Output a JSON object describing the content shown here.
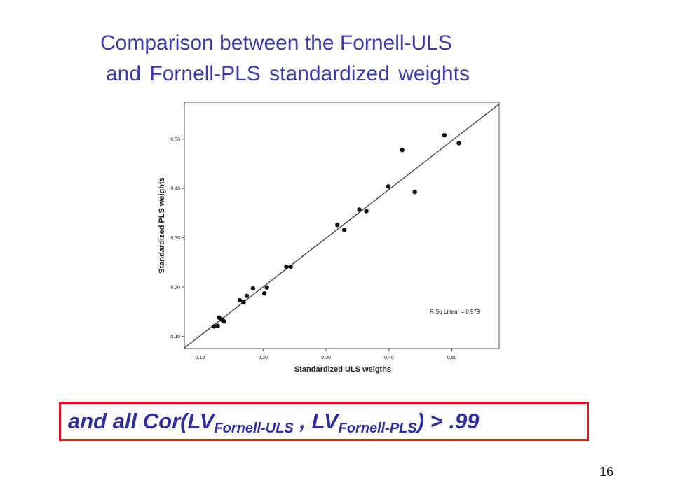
{
  "slide": {
    "title_line1": "Comparison between the Fornell-ULS",
    "title_line2": "and Fornell-PLS standardized weights",
    "callout": {
      "part1": "and  all Cor(LV",
      "sub1": "Fornell-ULS",
      "part2": " , LV",
      "sub2": "Fornell-PLS",
      "part3": ") > .99"
    },
    "page_number": "16"
  },
  "chart_data": {
    "type": "scatter",
    "xlabel": "Standardized ULS weigths",
    "ylabel": "Standardized PLS weights",
    "xlim": [
      0.075,
      0.575
    ],
    "ylim": [
      0.075,
      0.575
    ],
    "x_ticks": [
      0.1,
      0.2,
      0.3,
      0.4,
      0.5
    ],
    "x_tick_labels": [
      "0,10",
      "0,20",
      "0,30",
      "0,40",
      "0,50"
    ],
    "y_ticks": [
      0.1,
      0.2,
      0.3,
      0.4,
      0.5
    ],
    "y_tick_labels": [
      "0,10",
      "0,20",
      "0,30",
      "0,40",
      "0,50"
    ],
    "grid": false,
    "fit_line": {
      "slope": 0.99,
      "intercept": 0.002
    },
    "annotation": "R Sq Linear = 0,979",
    "points": [
      [
        0.122,
        0.12
      ],
      [
        0.128,
        0.121
      ],
      [
        0.13,
        0.138
      ],
      [
        0.134,
        0.134
      ],
      [
        0.136,
        0.132
      ],
      [
        0.138,
        0.13
      ],
      [
        0.163,
        0.173
      ],
      [
        0.169,
        0.169
      ],
      [
        0.174,
        0.182
      ],
      [
        0.184,
        0.197
      ],
      [
        0.202,
        0.187
      ],
      [
        0.206,
        0.199
      ],
      [
        0.237,
        0.241
      ],
      [
        0.244,
        0.241
      ],
      [
        0.318,
        0.326
      ],
      [
        0.329,
        0.316
      ],
      [
        0.353,
        0.357
      ],
      [
        0.364,
        0.354
      ],
      [
        0.399,
        0.404
      ],
      [
        0.421,
        0.478
      ],
      [
        0.441,
        0.393
      ],
      [
        0.488,
        0.508
      ],
      [
        0.511,
        0.492
      ]
    ]
  }
}
